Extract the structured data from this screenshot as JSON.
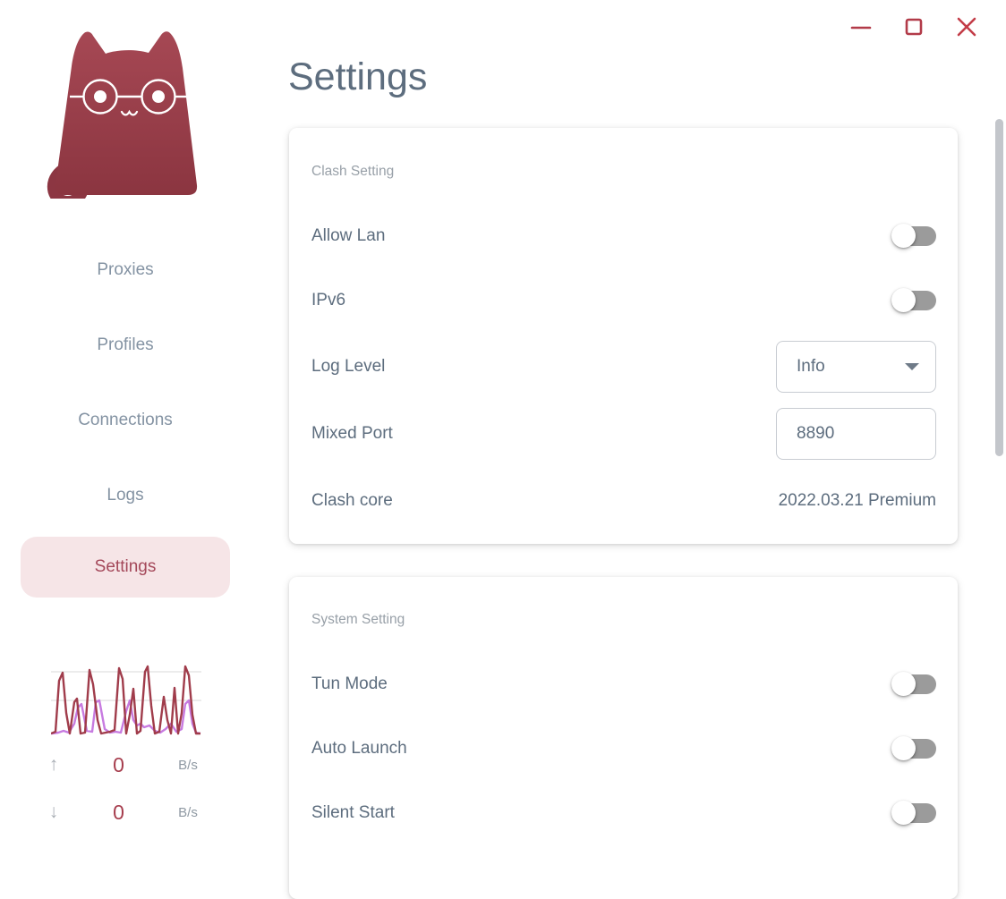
{
  "window": {
    "controls": [
      {
        "name": "minimize"
      },
      {
        "name": "maximize"
      },
      {
        "name": "close"
      }
    ]
  },
  "colors": {
    "accent_crimson": "#b23b49",
    "close_red": "#c33c47",
    "active_nav_bg": "#f6e5e7",
    "active_nav_text": "#a4485a",
    "title_text": "#5d6d7e",
    "muted_text": "#98a0a8",
    "nav_text": "#8493a3",
    "toggle_track_off": "#9b9b9b",
    "graph_upload": "#a03c4b",
    "graph_download": "#c77be0"
  },
  "sidebar": {
    "logo": "clash-cat-logo",
    "nav": [
      {
        "label": "Proxies",
        "active": false
      },
      {
        "label": "Profiles",
        "active": false
      },
      {
        "label": "Connections",
        "active": false
      },
      {
        "label": "Logs",
        "active": false
      },
      {
        "label": "Settings",
        "active": true
      }
    ],
    "traffic": {
      "up": {
        "arrow": "↑",
        "value": "0",
        "unit": "B/s"
      },
      "down": {
        "arrow": "↓",
        "value": "0",
        "unit": "B/s"
      }
    },
    "graph": {
      "width": 168,
      "height": 85,
      "gridlines": [
        14,
        46
      ],
      "series": [
        {
          "name": "download",
          "color": "#c77be0",
          "points": [
            [
              0,
              83
            ],
            [
              8,
              82
            ],
            [
              14,
              80
            ],
            [
              20,
              82
            ],
            [
              26,
              72
            ],
            [
              30,
              54
            ],
            [
              34,
              50
            ],
            [
              40,
              80
            ],
            [
              46,
              81
            ],
            [
              50,
              48
            ],
            [
              54,
              46
            ],
            [
              60,
              78
            ],
            [
              66,
              82
            ],
            [
              72,
              81
            ],
            [
              78,
              82
            ],
            [
              84,
              58
            ],
            [
              88,
              46
            ],
            [
              92,
              68
            ],
            [
              96,
              74
            ],
            [
              100,
              72
            ],
            [
              104,
              76
            ],
            [
              110,
              74
            ],
            [
              116,
              80
            ],
            [
              122,
              82
            ],
            [
              128,
              78
            ],
            [
              134,
              72
            ],
            [
              140,
              81
            ],
            [
              146,
              78
            ],
            [
              150,
              50
            ],
            [
              154,
              46
            ],
            [
              158,
              72
            ],
            [
              162,
              82
            ],
            [
              167,
              83
            ]
          ]
        },
        {
          "name": "upload",
          "color": "#a03c4b",
          "points": [
            [
              0,
              83
            ],
            [
              5,
              81
            ],
            [
              9,
              24
            ],
            [
              13,
              15
            ],
            [
              17,
              60
            ],
            [
              21,
              83
            ],
            [
              26,
              48
            ],
            [
              29,
              44
            ],
            [
              33,
              83
            ],
            [
              38,
              82
            ],
            [
              43,
              12
            ],
            [
              47,
              28
            ],
            [
              52,
              68
            ],
            [
              56,
              83
            ],
            [
              61,
              82
            ],
            [
              66,
              81
            ],
            [
              71,
              79
            ],
            [
              76,
              10
            ],
            [
              80,
              22
            ],
            [
              84,
              83
            ],
            [
              88,
              62
            ],
            [
              92,
              33
            ],
            [
              96,
              83
            ],
            [
              100,
              80
            ],
            [
              105,
              14
            ],
            [
              108,
              8
            ],
            [
              112,
              52
            ],
            [
              116,
              83
            ],
            [
              121,
              81
            ],
            [
              126,
              42
            ],
            [
              130,
              68
            ],
            [
              134,
              83
            ],
            [
              138,
              32
            ],
            [
              142,
              83
            ],
            [
              146,
              60
            ],
            [
              150,
              8
            ],
            [
              154,
              18
            ],
            [
              158,
              62
            ],
            [
              162,
              83
            ],
            [
              167,
              83
            ]
          ]
        }
      ]
    }
  },
  "page": {
    "title": "Settings"
  },
  "cards": [
    {
      "section": "Clash Setting",
      "rows": [
        {
          "label": "Allow Lan",
          "type": "toggle",
          "state": "off"
        },
        {
          "label": "IPv6",
          "type": "toggle",
          "state": "off"
        },
        {
          "label": "Log Level",
          "type": "select",
          "value": "Info"
        },
        {
          "label": "Mixed Port",
          "type": "input",
          "value": "8890"
        },
        {
          "label": "Clash core",
          "type": "text",
          "value": "2022.03.21 Premium"
        }
      ]
    },
    {
      "section": "System Setting",
      "rows": [
        {
          "label": "Tun Mode",
          "type": "toggle",
          "state": "off"
        },
        {
          "label": "Auto Launch",
          "type": "toggle",
          "state": "off"
        },
        {
          "label": "Silent Start",
          "type": "toggle",
          "state": "off"
        }
      ]
    }
  ]
}
